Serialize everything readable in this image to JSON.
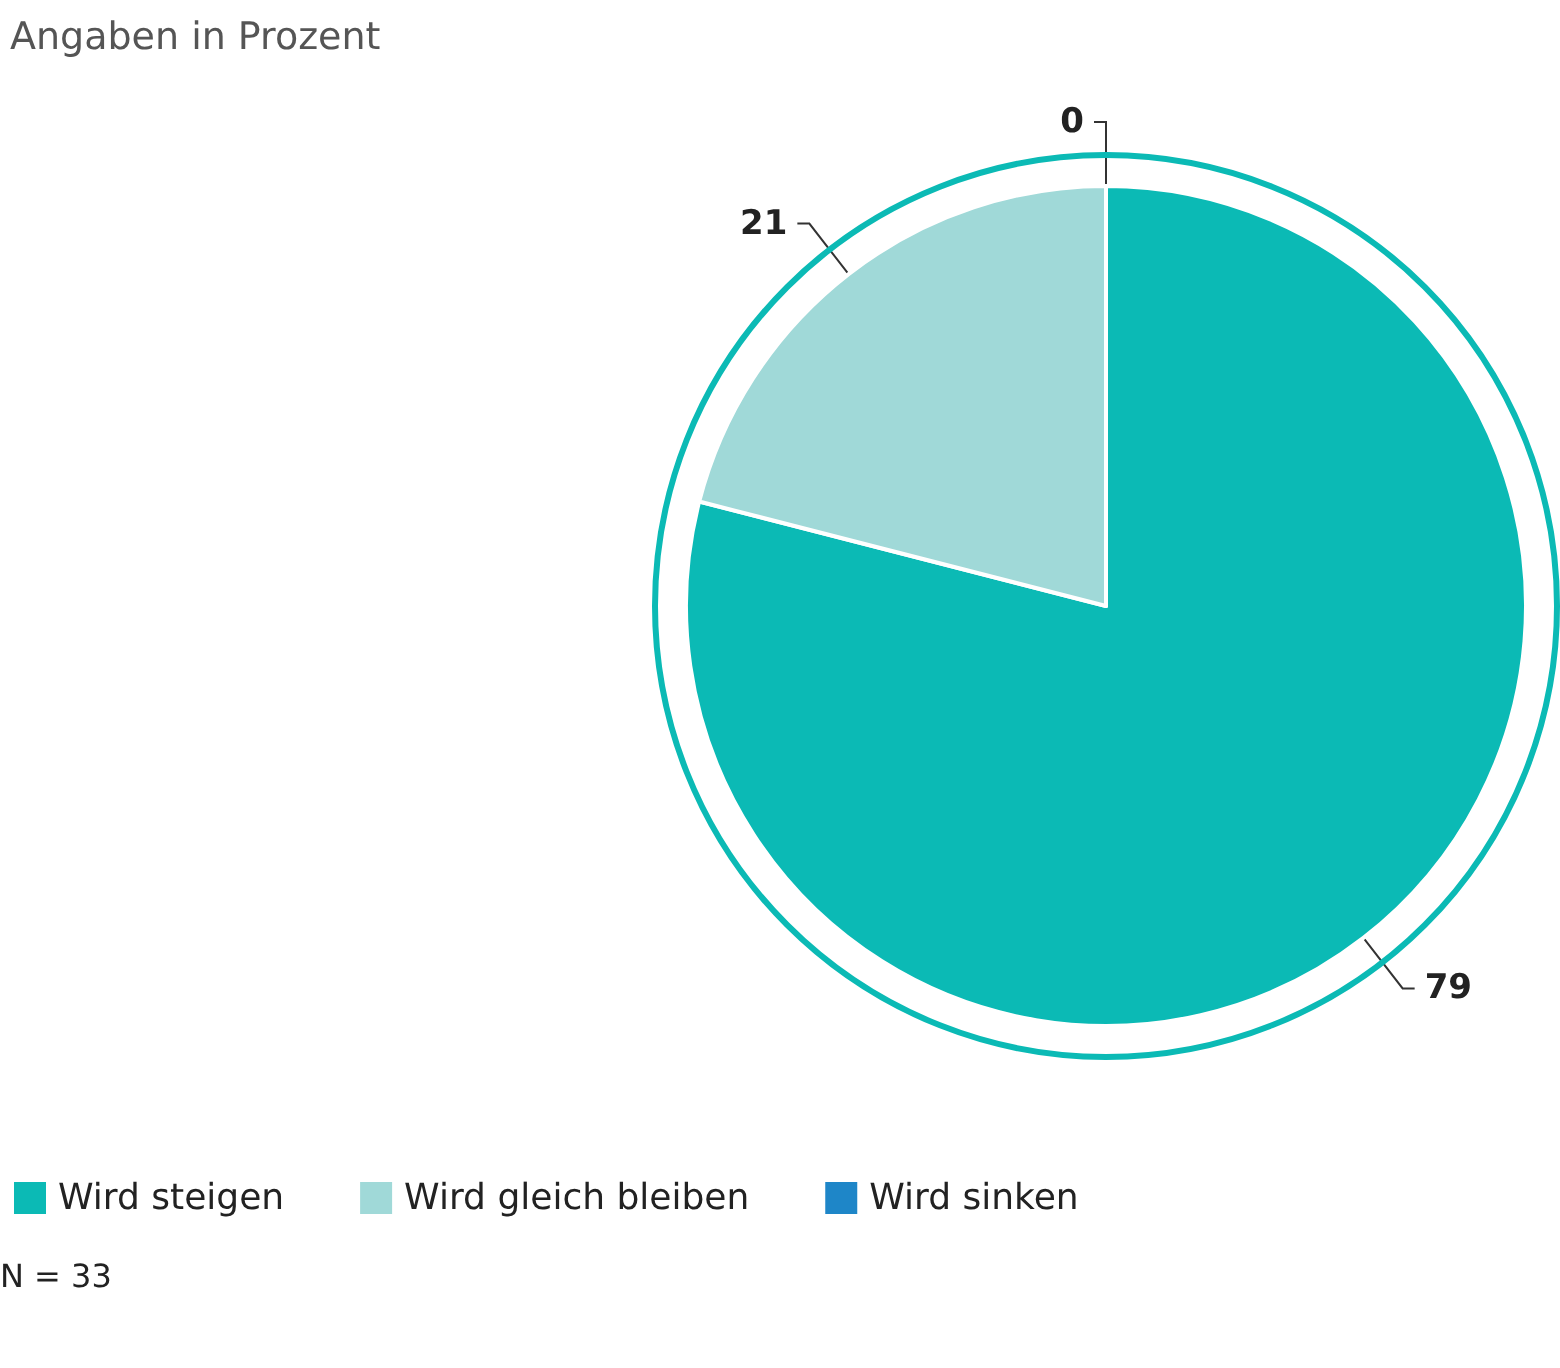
{
  "chart_data": {
    "type": "pie",
    "title": "Angaben in Prozent",
    "categories": [
      "Wird steigen",
      "Wird gleich bleiben",
      "Wird sinken"
    ],
    "values": [
      79,
      21,
      0
    ],
    "colors": [
      "#0bbab5",
      "#a0d9d8",
      "#1e86c8"
    ],
    "value_labels": [
      "79",
      "21",
      "0"
    ],
    "legend": "bottom left",
    "annotations": [
      "N = 33"
    ]
  }
}
